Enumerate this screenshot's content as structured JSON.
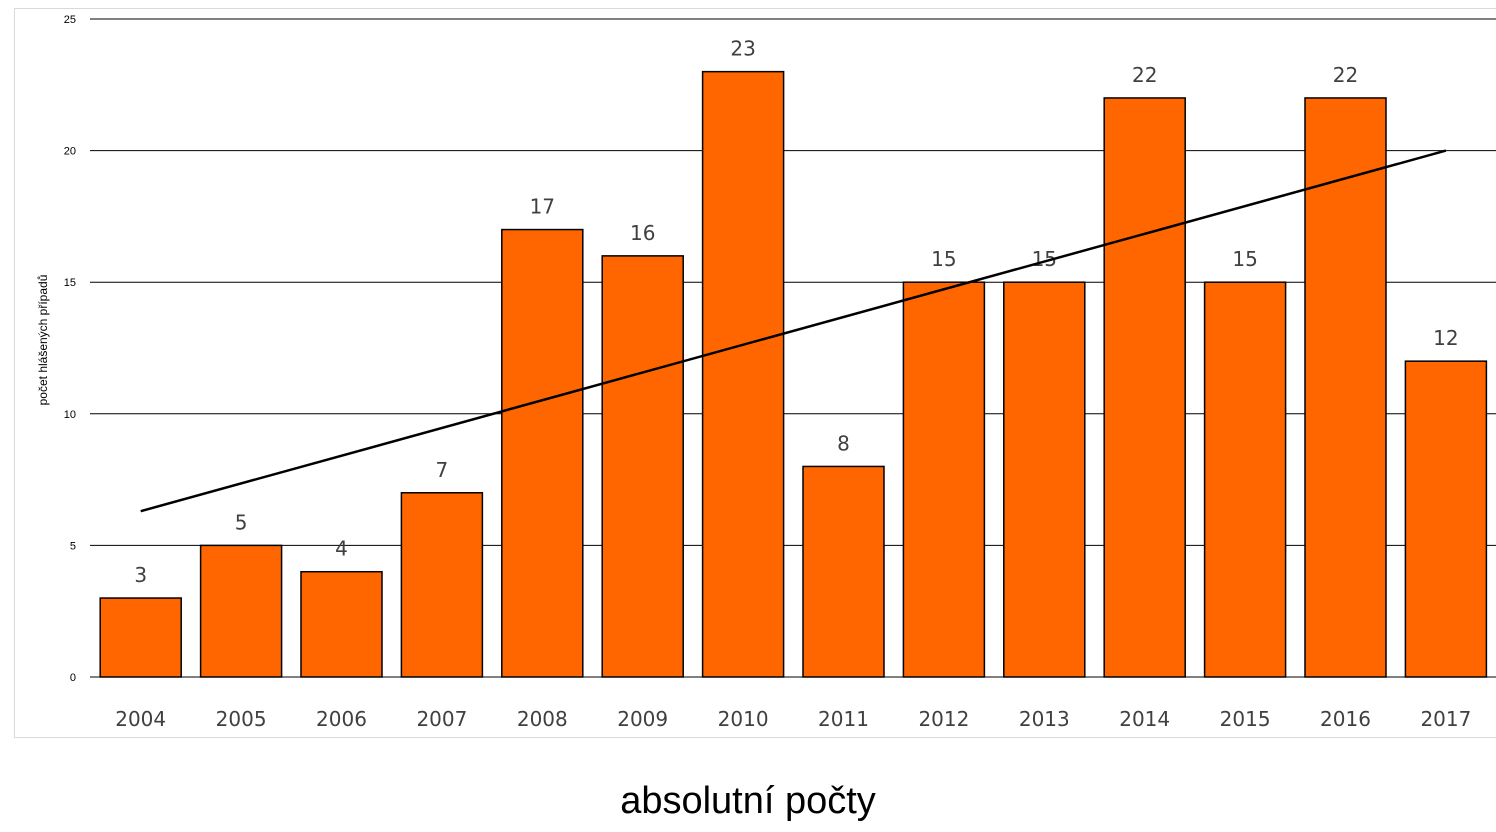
{
  "chart_data": {
    "type": "bar",
    "categories": [
      "2004",
      "2005",
      "2006",
      "2007",
      "2008",
      "2009",
      "2010",
      "2011",
      "2012",
      "2013",
      "2014",
      "2015",
      "2016",
      "2017"
    ],
    "values": [
      3,
      5,
      4,
      7,
      17,
      16,
      23,
      8,
      15,
      15,
      22,
      15,
      22,
      12
    ],
    "ylabel": "počet hlášených případů",
    "xlabel": "",
    "ylim": [
      0,
      25
    ],
    "yticks": [
      0,
      5,
      10,
      15,
      20,
      25
    ],
    "grid": true,
    "trendline": {
      "type": "linear",
      "start": 6.3,
      "end": 20.0
    },
    "colors": {
      "bar": "#ff6600",
      "bar_stroke": "#000000",
      "trend": "#000000",
      "grid": "#000000"
    }
  },
  "caption": "absolutní počty"
}
